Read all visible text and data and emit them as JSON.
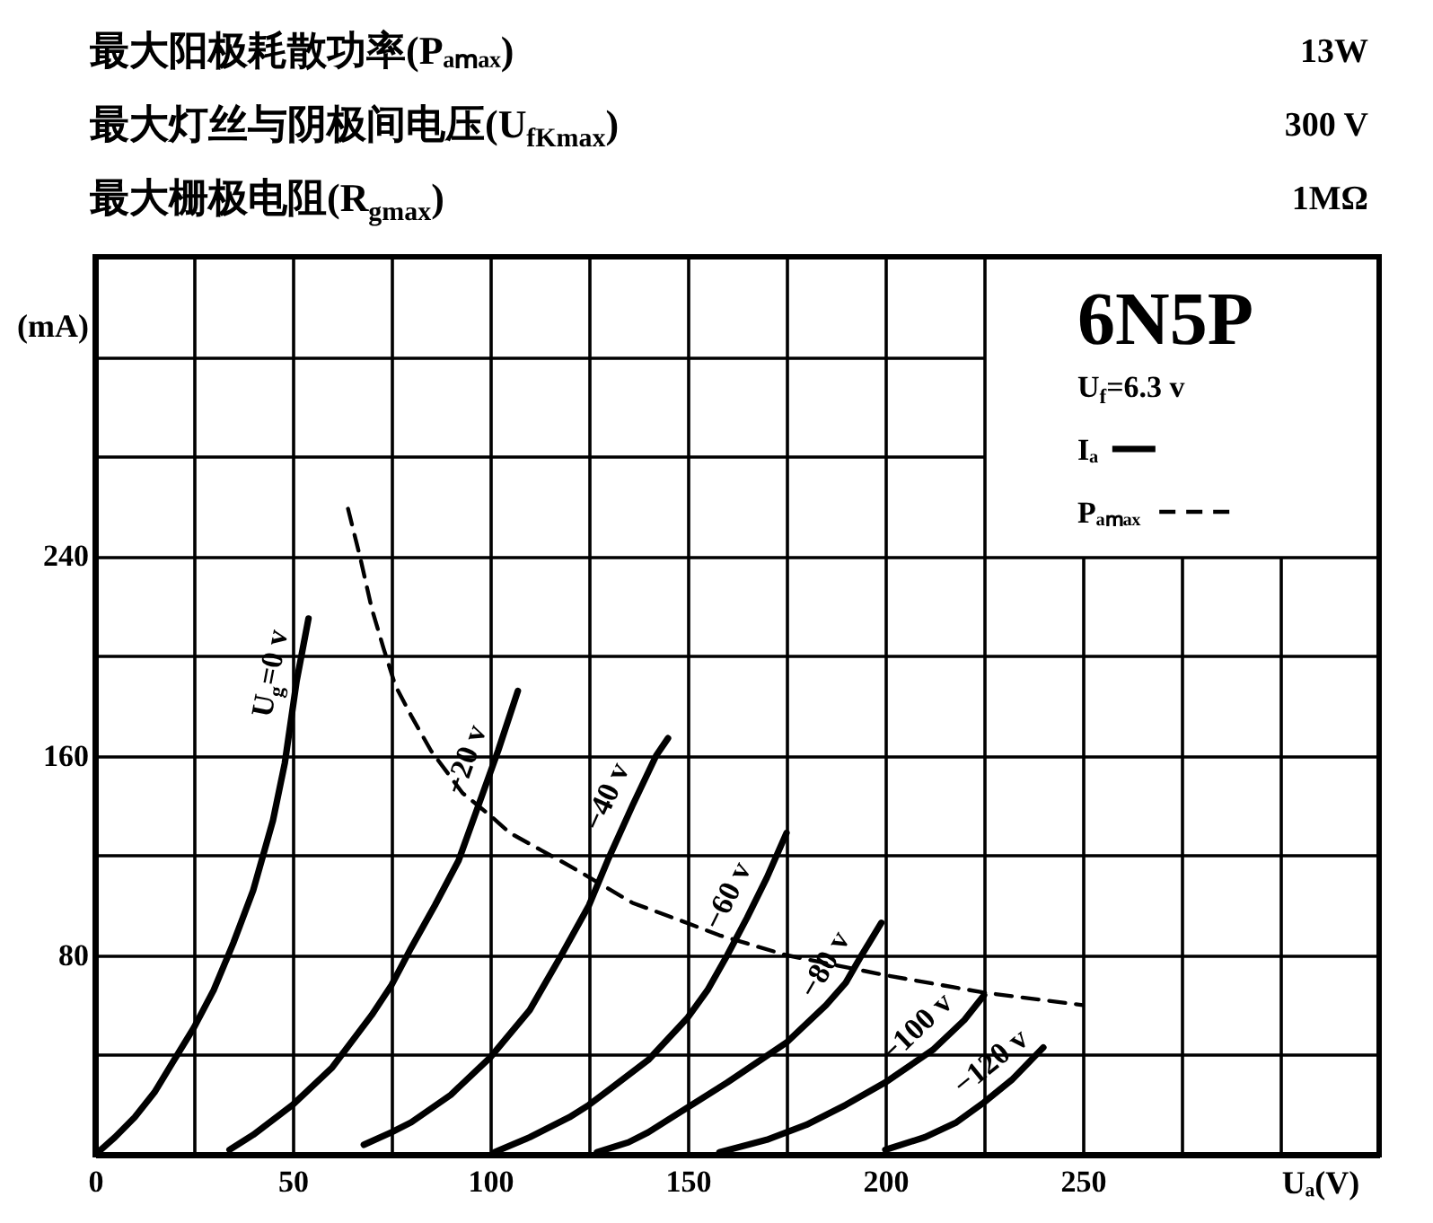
{
  "chart_data": {
    "type": "line",
    "legend_title": "6N5P",
    "xlabel": "Uₐ(V)",
    "ylabel": "(mA)",
    "annotations": [
      "最大阳极耗散功率(Pₐₘₐₓ)",
      "13W",
      "最大灯丝与阴极间电压(U$_{fKmax}$)",
      "300 V",
      "最大栅极电阻(R$_{gmax}$)",
      "1MΩ",
      "U$_{f}$=6.3 v",
      "Iₐ"
    ],
    "series": [
      {
        "name": "U$_{g}$=0 v",
        "color": "#000000",
        "x": [
          0,
          5,
          10,
          15,
          20,
          25,
          30,
          35,
          40,
          45,
          48,
          51,
          54
        ],
        "values": [
          0,
          7,
          15,
          25,
          38,
          51,
          66,
          85,
          106,
          134,
          157,
          190,
          215
        ]
      },
      {
        "name": "−20 v",
        "color": "#000000",
        "x": [
          34,
          40,
          50,
          60,
          70,
          75,
          80,
          86,
          92,
          97,
          102,
          107
        ],
        "values": [
          2,
          8,
          20,
          35,
          56,
          68,
          83,
          100,
          118,
          140,
          162,
          186
        ]
      },
      {
        "name": "−40 v",
        "color": "#000000",
        "x": [
          68,
          75,
          80,
          90,
          100,
          110,
          118,
          125,
          130,
          136,
          142,
          145
        ],
        "values": [
          4,
          9,
          13,
          24,
          39,
          58,
          80,
          100,
          119,
          140,
          160,
          167
        ]
      },
      {
        "name": "−60 v",
        "color": "#000000",
        "x": [
          101,
          110,
          120,
          125,
          130,
          140,
          150,
          155,
          160,
          165,
          170,
          175
        ],
        "values": [
          1,
          7,
          15,
          20,
          26,
          38,
          55,
          66,
          80,
          95,
          111,
          129
        ]
      },
      {
        "name": "−80 v",
        "color": "#000000",
        "x": [
          127,
          135,
          140,
          148,
          160,
          175,
          185,
          190,
          194,
          199
        ],
        "values": [
          1,
          5,
          9,
          17,
          29,
          45,
          60,
          69,
          80,
          93
        ]
      },
      {
        "name": "−100 v",
        "color": "#000000",
        "x": [
          158,
          170,
          180,
          190,
          200,
          212,
          220,
          225
        ],
        "values": [
          1,
          6,
          12,
          20,
          29,
          42,
          54,
          64
        ]
      },
      {
        "name": "−120 v",
        "color": "#000000",
        "x": [
          200,
          210,
          218,
          225,
          232,
          240
        ],
        "values": [
          2,
          7,
          13,
          21,
          30,
          43
        ]
      },
      {
        "name": "Pₐₘₐₓ",
        "color": "#000000",
        "line_style": "dashed",
        "x": [
          64,
          67,
          70,
          73,
          76,
          80,
          85,
          93,
          100,
          105,
          113,
          121,
          136,
          148,
          158,
          175,
          200,
          225,
          250
        ],
        "values": [
          259,
          240,
          219,
          203,
          188,
          176,
          162,
          145,
          136,
          129,
          122,
          115,
          101,
          94,
          88,
          80,
          72,
          65,
          60
        ]
      }
    ],
    "xlim": [
      0,
      325
    ],
    "xticks": [
      0,
      {
        "value": 25,
        "label": null
      },
      50,
      {
        "value": 75,
        "label": null
      },
      100,
      {
        "value": 125,
        "label": null
      },
      150,
      {
        "value": 175,
        "label": null
      },
      200,
      {
        "value": 225,
        "label": null
      },
      250,
      {
        "value": 275,
        "label": null
      },
      {
        "value": 300,
        "label": null
      },
      {
        "value": 325,
        "label": null
      }
    ],
    "ylim": [
      0,
      360
    ],
    "yticks": [
      {
        "value": 0,
        "label": null
      },
      {
        "value": 40,
        "label": null
      },
      80,
      {
        "value": 120,
        "label": null
      },
      160,
      {
        "value": 200,
        "label": null
      },
      240,
      {
        "value": 280,
        "label": null
      },
      {
        "value": 320,
        "label": null
      },
      {
        "value": 360,
        "label": null
      }
    ],
    "grid": true,
    "legend": "top right",
    "line_style": "solid"
  }
}
